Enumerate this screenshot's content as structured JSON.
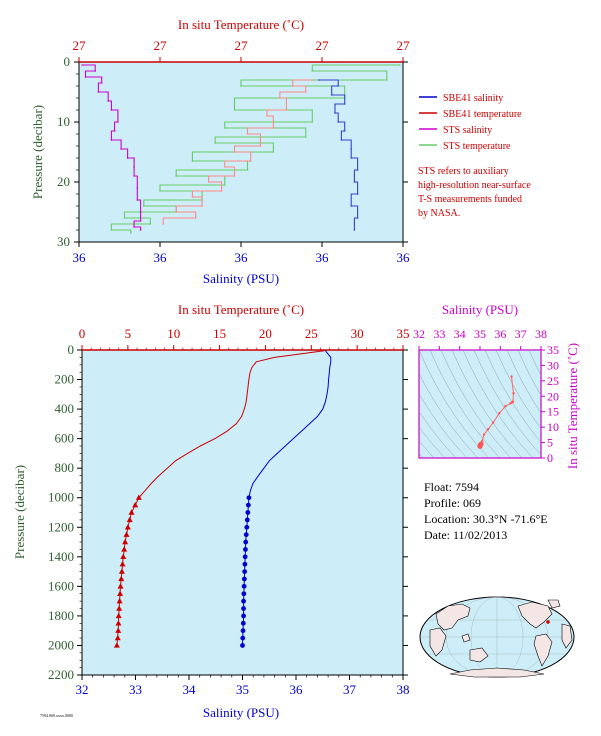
{
  "colors": {
    "plot_bg": "#cdeef8",
    "red": "#cc0000",
    "blue": "#0000cc",
    "magenta": "#cc00cc",
    "green": "#339933",
    "dark_green": "#2e5e2e",
    "sts_temperature": "#66cc66",
    "sts_salinity": "#cc00cc",
    "sbe41_temperature_upper": "#ff8888",
    "sbe41_salinity_upper": "#3344cc"
  },
  "info": {
    "float": "Float: 7594",
    "profile": "Profile: 069",
    "location": "Location: 30.3°N -71.6°E",
    "date": "Date: 11/02/2013"
  },
  "footer_tag": "7594.069.xxxx.0000",
  "chart_data": [
    {
      "type": "line",
      "panel": "upper",
      "top_axis_label": "In situ Temperature (˚C)",
      "top_ticks": [
        "27",
        "27",
        "27",
        "27",
        "27"
      ],
      "bottom_axis_label": "Salinity (PSU)",
      "bottom_ticks": [
        "36",
        "36",
        "36",
        "36",
        "36"
      ],
      "left_axis_label": "Pressure (decibar)",
      "y_ticks": [
        "0",
        "10",
        "20",
        "30"
      ],
      "ylim": [
        0,
        30
      ],
      "y_inverted": true,
      "grid": false,
      "legend_position": "right",
      "legend": [
        {
          "label": "SBE41 salinity",
          "color": "#0000cc"
        },
        {
          "label": "SBE41 temperature",
          "color": "#cc0000"
        },
        {
          "label": "STS salinity",
          "color": "#cc00cc"
        },
        {
          "label": "STS temperature",
          "color": "#66cc66"
        }
      ],
      "note_lines": [
        "STS refers to auxiliary",
        "high-resolution near-surface",
        "T-S measurements funded",
        "by NASA."
      ],
      "series": [
        {
          "name": "STS temperature",
          "x_axis_fraction": [
            0.99,
            0.72,
            0.95,
            0.5,
            0.82,
            0.48,
            0.72,
            0.45,
            0.7,
            0.42,
            0.6,
            0.35,
            0.52,
            0.3,
            0.45,
            0.25,
            0.38,
            0.2,
            0.3,
            0.14,
            0.22,
            0.1,
            0.16
          ],
          "pressure": [
            0.5,
            1.5,
            3,
            4,
            6,
            8,
            10,
            11,
            12.5,
            13.5,
            15,
            16.5,
            18,
            19,
            20.5,
            21.5,
            23,
            24,
            25,
            26,
            27,
            28,
            28.5
          ]
        },
        {
          "name": "STS salinity",
          "x_axis_fraction": [
            0.01,
            0.05,
            0.02,
            0.07,
            0.06,
            0.09,
            0.1,
            0.12,
            0.11,
            0.1,
            0.13,
            0.15,
            0.17,
            0.17,
            0.18,
            0.18,
            0.19,
            0.19,
            0.17,
            0.19
          ],
          "pressure": [
            0.5,
            1.5,
            2.5,
            3.5,
            5,
            6.5,
            8,
            10,
            11.5,
            13,
            14.5,
            16,
            17.5,
            19,
            21,
            23,
            25,
            26.5,
            27.5,
            28
          ]
        },
        {
          "name": "SBE41 temperature",
          "x_axis_fraction": [
            0.72,
            0.66,
            0.7,
            0.62,
            0.64,
            0.58,
            0.6,
            0.52,
            0.56,
            0.48,
            0.53,
            0.45,
            0.48,
            0.4,
            0.44,
            0.35,
            0.38,
            0.3,
            0.36,
            0.26
          ],
          "pressure": [
            3,
            4,
            5,
            6,
            8,
            9,
            11,
            12,
            14,
            15,
            16.5,
            17.5,
            19,
            20,
            21.5,
            22.5,
            24,
            25,
            26,
            27
          ]
        },
        {
          "name": "SBE41 salinity",
          "x_axis_fraction": [
            0.74,
            0.8,
            0.78,
            0.82,
            0.79,
            0.8,
            0.82,
            0.81,
            0.84,
            0.84,
            0.86,
            0.85,
            0.86,
            0.84,
            0.86,
            0.85
          ],
          "pressure": [
            3,
            4,
            5.5,
            7,
            8.5,
            10,
            11.5,
            13,
            14.5,
            16,
            18,
            20,
            22,
            24,
            26,
            28
          ]
        }
      ]
    },
    {
      "type": "line",
      "panel": "main",
      "top_axis_label": "In situ Temperature (˚C)",
      "top_ticks": [
        "0",
        "5",
        "10",
        "15",
        "20",
        "25",
        "30",
        "35"
      ],
      "xlim_temperature": [
        0,
        35
      ],
      "bottom_axis_label": "Salinity (PSU)",
      "bottom_ticks": [
        "32",
        "33",
        "34",
        "35",
        "36",
        "37",
        "38"
      ],
      "xlim_salinity": [
        32,
        38
      ],
      "left_axis_label": "Pressure (decibar)",
      "y_ticks": [
        "0",
        "200",
        "400",
        "600",
        "800",
        "1000",
        "1200",
        "1400",
        "1600",
        "1800",
        "2000",
        "2200"
      ],
      "ylim": [
        0,
        2200
      ],
      "y_inverted": true,
      "series": [
        {
          "name": "temperature",
          "color": "#cc0000",
          "pressure": [
            5,
            50,
            80,
            120,
            160,
            200,
            250,
            300,
            350,
            400,
            450,
            500,
            550,
            600,
            650,
            700,
            750,
            800,
            850,
            900,
            950,
            1000,
            1100,
            1200,
            1300,
            1400,
            1500,
            1600,
            1700,
            1800,
            1900,
            2000
          ],
          "values": [
            26.4,
            21.0,
            19.0,
            18.5,
            18.3,
            18.2,
            18.1,
            18.0,
            17.9,
            17.7,
            17.4,
            16.8,
            15.8,
            14.5,
            12.9,
            11.5,
            10.2,
            9.3,
            8.4,
            7.6,
            6.9,
            6.2,
            5.4,
            5.0,
            4.7,
            4.5,
            4.35,
            4.2,
            4.1,
            4.0,
            3.95,
            3.8
          ]
        },
        {
          "name": "salinity",
          "color": "#0000cc",
          "pressure": [
            5,
            50,
            80,
            120,
            160,
            200,
            250,
            300,
            350,
            400,
            450,
            500,
            550,
            600,
            650,
            700,
            750,
            800,
            850,
            900,
            950,
            1000,
            1100,
            1200,
            1300,
            1400,
            1500,
            1600,
            1700,
            1800,
            1900,
            2000
          ],
          "values": [
            36.55,
            36.65,
            36.65,
            36.63,
            36.62,
            36.61,
            36.6,
            36.58,
            36.55,
            36.5,
            36.4,
            36.25,
            36.1,
            35.95,
            35.8,
            35.65,
            35.5,
            35.4,
            35.3,
            35.2,
            35.15,
            35.12,
            35.1,
            35.08,
            35.06,
            35.05,
            35.04,
            35.03,
            35.02,
            35.02,
            35.01,
            35.0
          ]
        }
      ],
      "markers": {
        "pressure": [
          1000,
          1050,
          1100,
          1150,
          1200,
          1250,
          1300,
          1350,
          1400,
          1450,
          1500,
          1550,
          1600,
          1650,
          1700,
          1750,
          1800,
          1850,
          1900,
          1950,
          2000
        ],
        "temperature": [
          6.2,
          5.8,
          5.4,
          5.2,
          5.0,
          4.85,
          4.7,
          4.6,
          4.5,
          4.42,
          4.35,
          4.28,
          4.2,
          4.15,
          4.1,
          4.05,
          4.0,
          3.97,
          3.95,
          3.9,
          3.8
        ],
        "salinity": [
          35.12,
          35.11,
          35.1,
          35.09,
          35.08,
          35.07,
          35.06,
          35.055,
          35.05,
          35.045,
          35.04,
          35.035,
          35.03,
          35.025,
          35.02,
          35.02,
          35.02,
          35.015,
          35.01,
          35.005,
          35.0
        ]
      }
    },
    {
      "type": "scatter",
      "panel": "ts-diagram",
      "top_axis_label": "Salinity (PSU)",
      "top_ticks": [
        "32",
        "33",
        "34",
        "35",
        "36",
        "37",
        "38"
      ],
      "xlim": [
        32,
        38
      ],
      "right_axis_label": "In situ Temperature (˚C)",
      "right_ticks": [
        "0",
        "5",
        "10",
        "15",
        "20",
        "25",
        "30",
        "35"
      ],
      "ylim": [
        0,
        35
      ],
      "series": [
        {
          "name": "profile",
          "salinity": [
            35.0,
            35.02,
            35.05,
            35.1,
            35.2,
            35.4,
            35.65,
            35.95,
            36.25,
            36.5,
            36.58,
            36.6,
            36.62,
            36.65,
            36.55
          ],
          "temperature": [
            3.8,
            4.2,
            4.5,
            5.4,
            7.6,
            9.3,
            11.5,
            14.5,
            16.8,
            17.7,
            18.0,
            18.1,
            18.3,
            21.0,
            26.4
          ]
        }
      ]
    }
  ]
}
